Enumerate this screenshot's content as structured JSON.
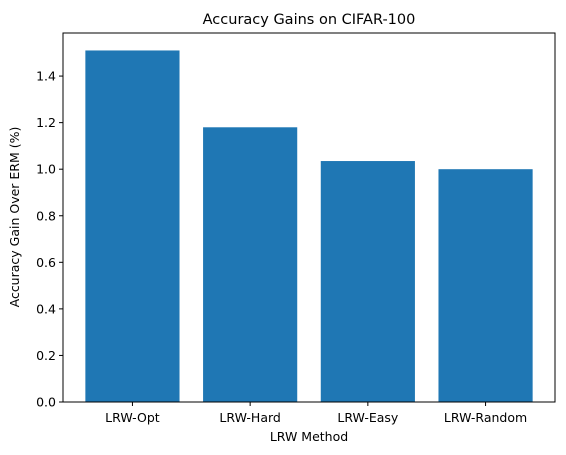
{
  "chart_data": {
    "type": "bar",
    "title": "Accuracy Gains on CIFAR-100",
    "xlabel": "LRW Method",
    "ylabel": "Accuracy Gain Over ERM (%)",
    "categories": [
      "LRW-Opt",
      "LRW-Hard",
      "LRW-Easy",
      "LRW-Random"
    ],
    "values": [
      1.51,
      1.18,
      1.035,
      1.0
    ],
    "ylim": [
      0,
      1.585
    ],
    "yticks": [
      {
        "value": 0.0,
        "label": "0.0"
      },
      {
        "value": 0.2,
        "label": "0.2"
      },
      {
        "value": 0.4,
        "label": "0.4"
      },
      {
        "value": 0.6,
        "label": "0.6"
      },
      {
        "value": 0.8,
        "label": "0.8"
      },
      {
        "value": 1.0,
        "label": "1.0"
      },
      {
        "value": 1.2,
        "label": "1.2"
      },
      {
        "value": 1.4,
        "label": "1.4"
      }
    ],
    "bar_color": "#1f77b4",
    "grid": false,
    "legend": "none"
  }
}
